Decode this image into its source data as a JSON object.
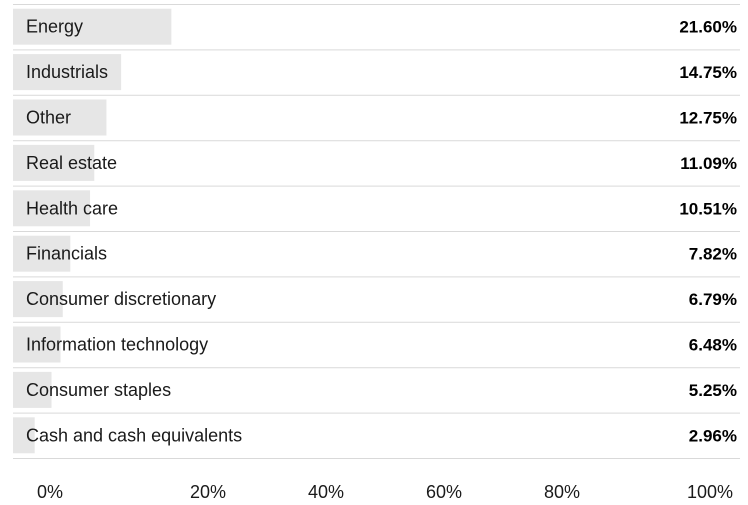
{
  "chart_data": {
    "type": "bar",
    "orientation": "horizontal",
    "categories": [
      "Energy",
      "Industrials",
      "Other",
      "Real estate",
      "Health care",
      "Financials",
      "Consumer discretionary",
      "Information technology",
      "Consumer staples",
      "Cash and cash equivalents"
    ],
    "values": [
      21.6,
      14.75,
      12.75,
      11.09,
      10.51,
      7.82,
      6.79,
      6.48,
      5.25,
      2.96
    ],
    "value_labels": [
      "21.60%",
      "14.75%",
      "12.75%",
      "11.09%",
      "10.51%",
      "7.82%",
      "6.79%",
      "6.48%",
      "5.25%",
      "2.96%"
    ],
    "xlim": [
      0,
      100
    ],
    "x_ticks": [
      0,
      20,
      40,
      60,
      80,
      100
    ],
    "x_tick_labels": [
      "0%",
      "20%",
      "40%",
      "60%",
      "80%",
      "100%"
    ],
    "title": "",
    "xlabel": "",
    "ylabel": "",
    "grid": false,
    "legend": "none",
    "bar_color": "#e6e6e6",
    "row_line_color": "#d9d9d9"
  }
}
